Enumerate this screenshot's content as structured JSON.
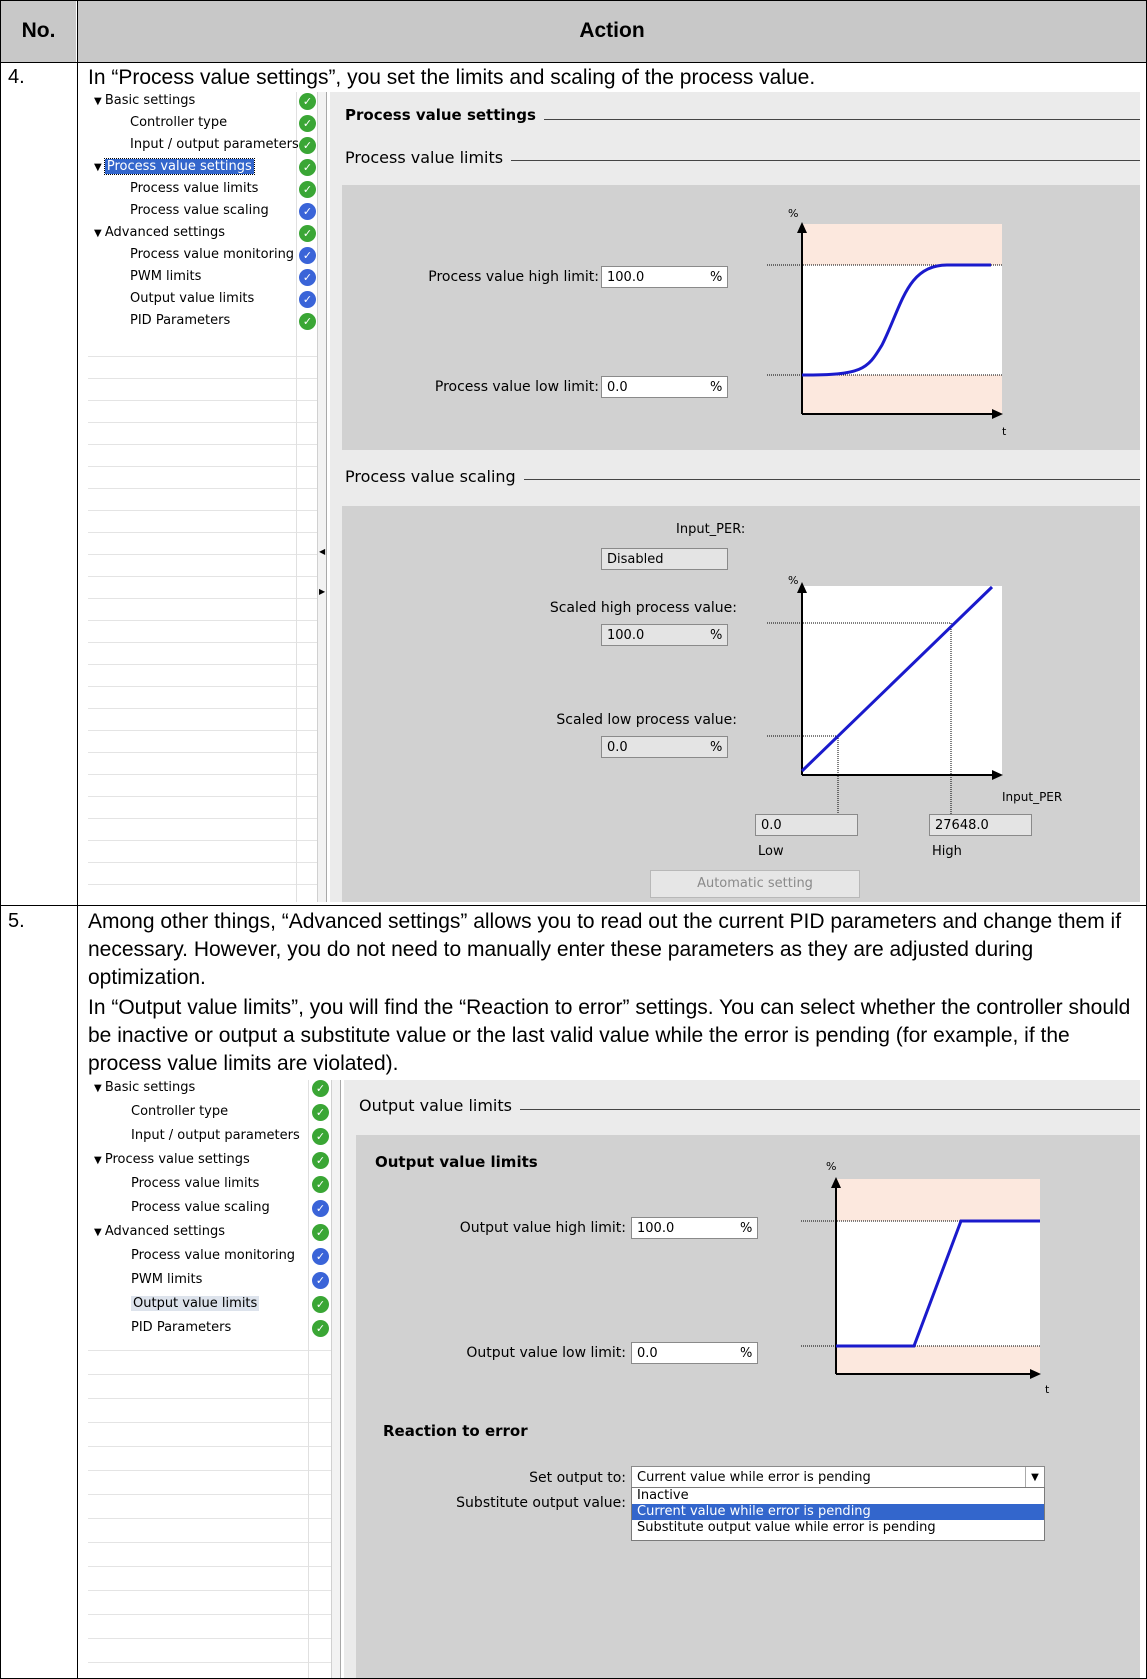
{
  "table": {
    "header": {
      "no": "No.",
      "action": "Action"
    },
    "rows": [
      {
        "no": "4.",
        "text": "In “Process value settings”, you set the limits and scaling of the process value."
      },
      {
        "no": "5.",
        "paragraphs": [
          "Among other things, “Advanced settings” allows you to read out the current PID parameters and change them if necessary. However, you do not need to manually enter these parameters as they are adjusted during optimization.",
          "In “Output value limits”, you will find the “Reaction to error” settings. You can select whether the controller should be inactive or output a substitute value or the last valid value while the error is pending (for example, if the process value limits are violated)."
        ]
      }
    ]
  },
  "tree": {
    "items": [
      {
        "label": "Basic settings",
        "status": "green",
        "level": 0,
        "expanded": true
      },
      {
        "label": "Controller type",
        "status": "green",
        "level": 1
      },
      {
        "label": "Input / output parameters",
        "status": "green",
        "level": 1
      },
      {
        "label": "Process value settings",
        "status": "green",
        "level": 0,
        "expanded": true
      },
      {
        "label": "Process value limits",
        "status": "green",
        "level": 1
      },
      {
        "label": "Process value scaling",
        "status": "blue",
        "level": 1
      },
      {
        "label": "Advanced settings",
        "status": "green",
        "level": 0,
        "expanded": true
      },
      {
        "label": "Process value monitoring",
        "status": "blue",
        "level": 1
      },
      {
        "label": "PWM limits",
        "status": "blue",
        "level": 1
      },
      {
        "label": "Output value limits",
        "status": "green",
        "level": 1
      },
      {
        "label": "PID Parameters",
        "status": "green",
        "level": 1
      }
    ],
    "selected_1": "Process value settings",
    "selected_2": "Output value limits"
  },
  "screen1": {
    "heading": "Process value settings",
    "limits_section": "Process value limits",
    "high_limit_label": "Process value high limit:",
    "high_limit_value": "100.0",
    "low_limit_label": "Process value low limit:",
    "low_limit_value": "0.0",
    "unit": "%",
    "graph_y": "%",
    "graph_x": "t",
    "scaling_section": "Process value scaling",
    "input_per_label": "Input_PER:",
    "input_per_value": "Disabled",
    "scaled_high_label": "Scaled high process value:",
    "scaled_high_value": "100.0",
    "scaled_low_label": "Scaled low process value:",
    "scaled_low_value": "0.0",
    "scaling_graph_x": "Input_PER",
    "low_input_value": "0.0",
    "high_input_value": "27648.0",
    "low_caption": "Low",
    "high_caption": "High",
    "auto_button": "Automatic setting"
  },
  "screen2": {
    "section": "Output value limits",
    "box_title": "Output value limits",
    "high_limit_label": "Output value high limit:",
    "high_limit_value": "100.0",
    "low_limit_label": "Output value low limit:",
    "low_limit_value": "0.0",
    "unit": "%",
    "graph_y": "%",
    "graph_x": "t",
    "reaction_title": "Reaction to error",
    "set_output_label": "Set output to:",
    "set_output_value": "Current value while error is pending",
    "substitute_label": "Substitute output value:",
    "options": [
      "Inactive",
      "Current value while error is pending",
      "Substitute output value while error is pending"
    ],
    "selected_option": "Current value while error is pending"
  }
}
